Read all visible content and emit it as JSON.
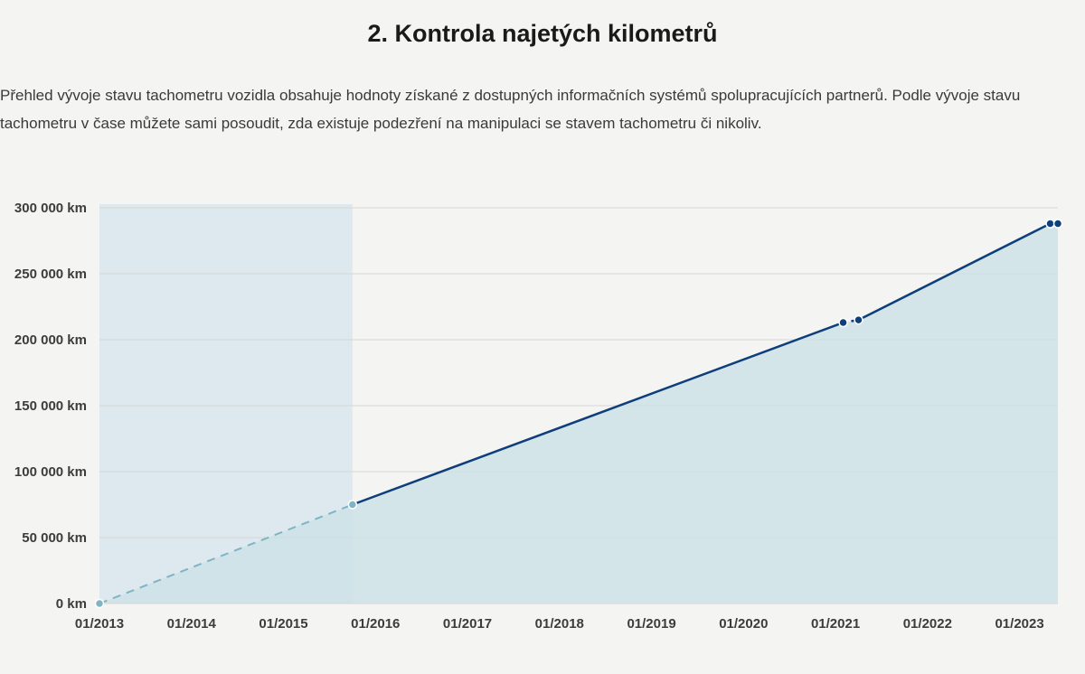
{
  "header": {
    "title": "2. Kontrola najetých kilometrů",
    "description": "Přehled vývoje stavu tachometru vozidla obsahuje hodnoty získané z dostupných informačních systémů spolupracujících partnerů. Podle vývoje stavu tachometru v čase můžete sami posoudit, zda existuje podezření na manipulaci se stavem tachometru či nikoliv."
  },
  "chart_data": {
    "type": "line",
    "title": "",
    "xlabel": "",
    "ylabel": "",
    "ylim": [
      0,
      300000
    ],
    "y_ticks": [
      0,
      50000,
      100000,
      150000,
      200000,
      250000,
      300000
    ],
    "y_tick_labels": [
      "0 km",
      "50 000 km",
      "100 000 km",
      "150 000 km",
      "200 000 km",
      "250 000 km",
      "300 000 km"
    ],
    "x_range": [
      "2013-01",
      "2023-06"
    ],
    "x_tick_labels": [
      "01/2013",
      "01/2014",
      "01/2015",
      "01/2016",
      "01/2017",
      "01/2018",
      "01/2019",
      "01/2020",
      "01/2021",
      "01/2022",
      "01/2023"
    ],
    "grid": true,
    "shaded_band": [
      "2013-01",
      "2015-10"
    ],
    "series": [
      {
        "points": [
          {
            "x": "2013-01",
            "y": 0
          },
          {
            "x": "2015-10",
            "y": 75000
          },
          {
            "x": "2021-02",
            "y": 213000
          },
          {
            "x": "2021-04",
            "y": 215000
          },
          {
            "x": "2023-05",
            "y": 288000
          },
          {
            "x": "2023-06",
            "y": 288000
          }
        ],
        "dashed_segments": [
          0
        ]
      }
    ],
    "colors": {
      "line": "#0f3f7a",
      "dashed": "#7fb4c4",
      "area": "#c9e0e6",
      "band": "#dde9ee",
      "grid": "#d6d6d6"
    }
  }
}
